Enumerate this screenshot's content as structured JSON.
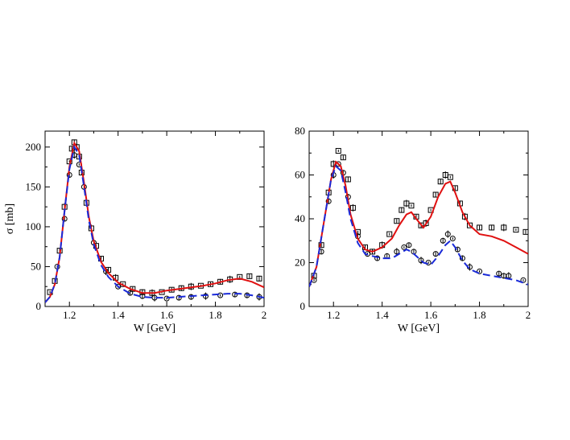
{
  "colors": {
    "solid": "#e01010",
    "dashed": "#1a2ad8",
    "points": "#000000"
  },
  "chart_data": [
    {
      "type": "line",
      "xlabel": "W [GeV]",
      "ylabel": "σ [mb]",
      "xlim": [
        1.1,
        2.0
      ],
      "ylim": [
        0,
        220
      ],
      "xticks": [
        1.2,
        1.4,
        1.6,
        1.8,
        2.0
      ],
      "xtick_labels": [
        "1.2",
        "1.4",
        "1.6",
        "1.8",
        "2"
      ],
      "yticks": [
        0,
        50,
        100,
        150,
        200
      ],
      "ytick_labels": [
        "0",
        "50",
        "100",
        "150",
        "200"
      ],
      "series": [
        {
          "name": "model-solid",
          "style": "solid",
          "color": "#e01010",
          "x": [
            1.1,
            1.12,
            1.14,
            1.16,
            1.18,
            1.2,
            1.22,
            1.24,
            1.26,
            1.28,
            1.3,
            1.33,
            1.36,
            1.4,
            1.45,
            1.5,
            1.55,
            1.6,
            1.65,
            1.7,
            1.75,
            1.8,
            1.85,
            1.9,
            1.95,
            2.0
          ],
          "y": [
            5,
            12,
            28,
            62,
            120,
            175,
            205,
            195,
            155,
            112,
            82,
            56,
            42,
            30,
            22,
            17,
            17,
            20,
            22,
            24,
            26,
            29,
            33,
            35,
            31,
            24
          ]
        },
        {
          "name": "model-dashed",
          "style": "dashed",
          "color": "#1a2ad8",
          "x": [
            1.1,
            1.12,
            1.14,
            1.16,
            1.18,
            1.2,
            1.22,
            1.24,
            1.26,
            1.28,
            1.3,
            1.33,
            1.36,
            1.4,
            1.45,
            1.5,
            1.55,
            1.6,
            1.65,
            1.7,
            1.75,
            1.8,
            1.85,
            1.9,
            1.95,
            2.0
          ],
          "y": [
            5,
            12,
            28,
            62,
            120,
            172,
            200,
            190,
            150,
            108,
            78,
            52,
            37,
            25,
            16,
            12,
            11,
            11,
            12,
            13,
            14,
            15,
            16,
            16,
            14,
            11
          ]
        },
        {
          "name": "data-squares",
          "marker": "square",
          "x": [
            1.12,
            1.14,
            1.16,
            1.18,
            1.2,
            1.21,
            1.22,
            1.23,
            1.24,
            1.25,
            1.27,
            1.29,
            1.31,
            1.33,
            1.36,
            1.39,
            1.42,
            1.46,
            1.5,
            1.54,
            1.58,
            1.62,
            1.66,
            1.7,
            1.74,
            1.78,
            1.82,
            1.86,
            1.9,
            1.94,
            1.98
          ],
          "y": [
            18,
            32,
            70,
            125,
            182,
            198,
            206,
            200,
            188,
            168,
            130,
            98,
            76,
            60,
            46,
            36,
            28,
            22,
            18,
            17,
            18,
            21,
            23,
            25,
            26,
            28,
            31,
            34,
            37,
            38,
            35
          ]
        },
        {
          "name": "data-circles",
          "marker": "circle",
          "x": [
            1.15,
            1.18,
            1.2,
            1.22,
            1.24,
            1.26,
            1.3,
            1.35,
            1.4,
            1.45,
            1.5,
            1.55,
            1.6,
            1.65,
            1.7,
            1.76,
            1.82,
            1.88,
            1.93,
            1.98
          ],
          "y": [
            50,
            110,
            165,
            190,
            178,
            150,
            80,
            44,
            25,
            17,
            13,
            11,
            10,
            11,
            12,
            13,
            14,
            15,
            14,
            12
          ]
        }
      ]
    },
    {
      "type": "line",
      "xlabel": "W [GeV]",
      "ylabel": "",
      "xlim": [
        1.1,
        2.0
      ],
      "ylim": [
        0,
        80
      ],
      "xticks": [
        1.2,
        1.4,
        1.6,
        1.8,
        2.0
      ],
      "xtick_labels": [
        "1.2",
        "1.4",
        "1.6",
        "1.8",
        "2"
      ],
      "yticks": [
        0,
        20,
        40,
        60,
        80
      ],
      "ytick_labels": [
        "0",
        "20",
        "40",
        "60",
        "80"
      ],
      "series": [
        {
          "name": "model-solid",
          "style": "solid",
          "color": "#e01010",
          "x": [
            1.1,
            1.13,
            1.16,
            1.19,
            1.21,
            1.23,
            1.25,
            1.27,
            1.3,
            1.33,
            1.36,
            1.4,
            1.44,
            1.47,
            1.5,
            1.52,
            1.54,
            1.57,
            1.6,
            1.63,
            1.66,
            1.68,
            1.7,
            1.73,
            1.76,
            1.8,
            1.85,
            1.9,
            1.95,
            2.0
          ],
          "y": [
            9,
            18,
            38,
            58,
            66,
            64,
            55,
            42,
            31,
            26,
            25,
            27,
            31,
            37,
            42,
            43,
            40,
            36,
            41,
            50,
            56,
            57,
            52,
            43,
            37,
            33,
            32,
            30,
            27,
            24
          ]
        },
        {
          "name": "model-dashed",
          "style": "dashed",
          "color": "#1a2ad8",
          "x": [
            1.1,
            1.13,
            1.16,
            1.19,
            1.21,
            1.23,
            1.25,
            1.27,
            1.3,
            1.33,
            1.36,
            1.4,
            1.44,
            1.47,
            1.5,
            1.52,
            1.54,
            1.57,
            1.6,
            1.63,
            1.66,
            1.68,
            1.7,
            1.73,
            1.76,
            1.8,
            1.85,
            1.9,
            1.95,
            2.0
          ],
          "y": [
            9,
            18,
            38,
            58,
            64,
            62,
            52,
            40,
            29,
            24,
            23,
            22,
            22,
            24,
            26,
            25,
            23,
            20,
            19,
            23,
            28,
            30,
            27,
            21,
            17,
            15,
            14,
            13,
            12,
            10
          ]
        },
        {
          "name": "data-squares",
          "marker": "square",
          "x": [
            1.12,
            1.15,
            1.18,
            1.2,
            1.22,
            1.24,
            1.26,
            1.28,
            1.3,
            1.33,
            1.36,
            1.4,
            1.43,
            1.46,
            1.48,
            1.5,
            1.52,
            1.54,
            1.56,
            1.58,
            1.6,
            1.62,
            1.64,
            1.66,
            1.68,
            1.7,
            1.72,
            1.74,
            1.76,
            1.8,
            1.85,
            1.9,
            1.95,
            1.99
          ],
          "y": [
            14,
            28,
            52,
            65,
            71,
            68,
            58,
            45,
            34,
            27,
            25,
            28,
            33,
            39,
            44,
            47,
            46,
            41,
            37,
            38,
            44,
            51,
            57,
            60,
            59,
            54,
            47,
            41,
            37,
            36,
            36,
            36,
            35,
            34
          ]
        },
        {
          "name": "data-circles",
          "marker": "circle",
          "x": [
            1.12,
            1.15,
            1.18,
            1.2,
            1.22,
            1.24,
            1.26,
            1.3,
            1.34,
            1.38,
            1.42,
            1.46,
            1.49,
            1.51,
            1.53,
            1.56,
            1.59,
            1.62,
            1.65,
            1.67,
            1.69,
            1.71,
            1.73,
            1.76,
            1.8,
            1.88,
            1.9,
            1.92,
            1.98
          ],
          "y": [
            12,
            25,
            48,
            60,
            65,
            61,
            50,
            32,
            24,
            22,
            23,
            25,
            27,
            28,
            25,
            21,
            20,
            24,
            30,
            33,
            31,
            26,
            22,
            18,
            16,
            15,
            14,
            14,
            12
          ]
        }
      ]
    }
  ]
}
